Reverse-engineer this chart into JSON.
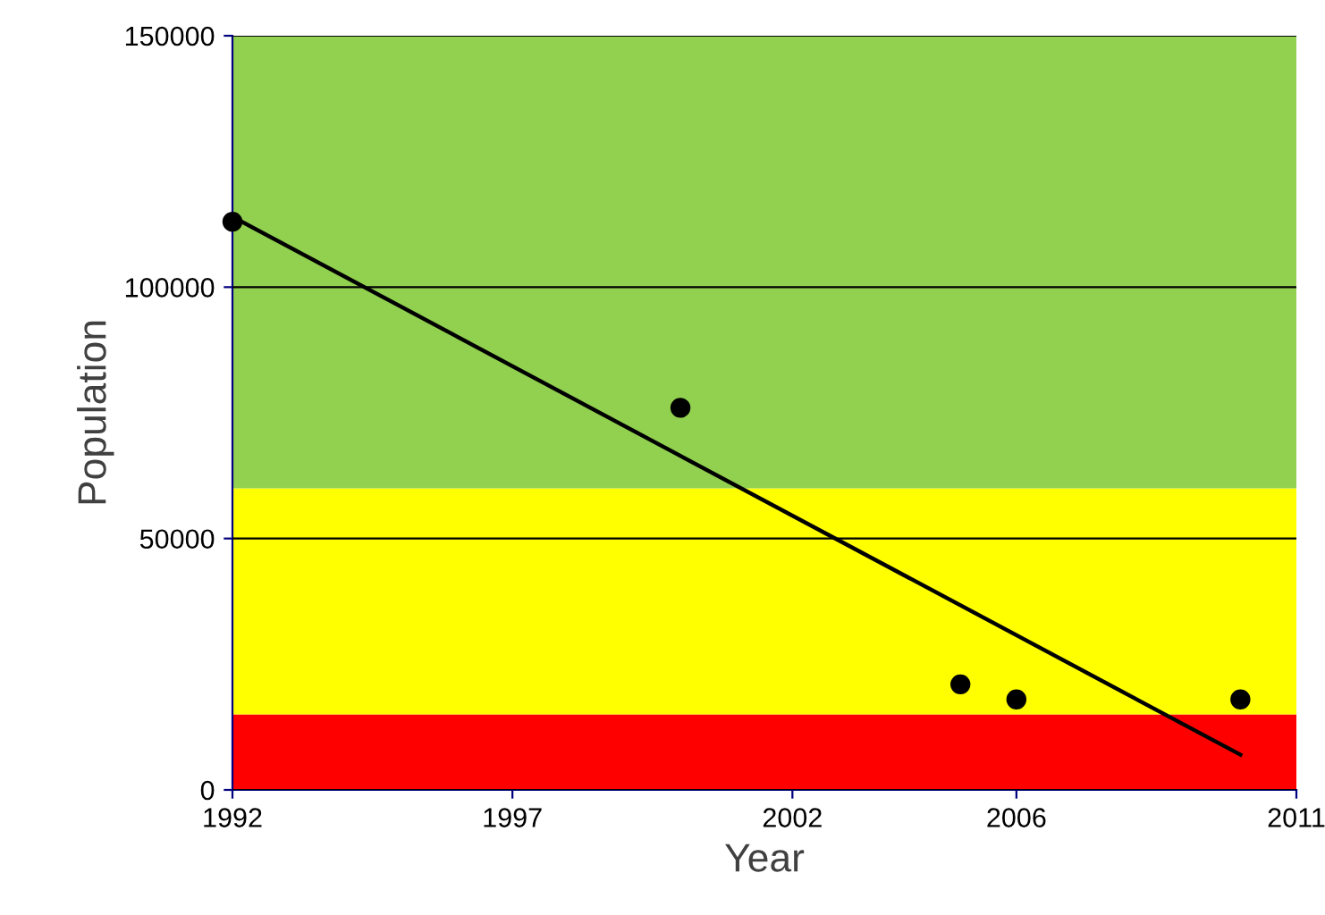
{
  "chart_data": {
    "type": "scatter",
    "xlabel": "Year",
    "ylabel": "Population",
    "xlim": [
      1992,
      2011
    ],
    "ylim": [
      0,
      150000
    ],
    "xticks": [
      1992,
      1997,
      2002,
      2006,
      2011
    ],
    "yticks": [
      0,
      50000,
      100000,
      150000
    ],
    "grid": "y",
    "bands": [
      {
        "axis": "y",
        "from": 0,
        "to": 15000,
        "color": "#ff0000"
      },
      {
        "axis": "y",
        "from": 15000,
        "to": 60000,
        "color": "#ffff00"
      },
      {
        "axis": "y",
        "from": 60000,
        "to": 150000,
        "color": "#92d050"
      }
    ],
    "series": [
      {
        "type": "scatter",
        "marker": "circle",
        "color": "#000000",
        "x": [
          1992,
          2000,
          2005,
          2006,
          2010
        ],
        "values": [
          113000,
          76000,
          21000,
          18000,
          18000
        ]
      },
      {
        "type": "line",
        "color": "#000000",
        "line_style": "solid",
        "x": [
          1992,
          2010
        ],
        "values": [
          114000,
          7000
        ]
      }
    ]
  }
}
